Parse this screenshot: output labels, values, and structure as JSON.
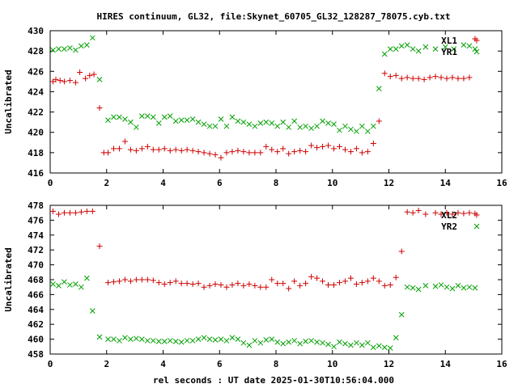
{
  "title": "HIRES continuum, GL32, file:Skynet_60705_GL32_128287_78075.cyb.txt",
  "xlabel": "rel seconds : UT date 2025-01-30T10:56:04.000",
  "colors": {
    "red": "#d00000",
    "green": "#00a000",
    "axis": "#000000"
  },
  "chart_data": [
    {
      "type": "scatter",
      "title": "",
      "ylabel": "Uncalibrated",
      "xlim": [
        0,
        16
      ],
      "ylim": [
        416,
        430
      ],
      "xticks": [
        0,
        2,
        4,
        6,
        8,
        10,
        12,
        14,
        16
      ],
      "yticks": [
        416,
        418,
        420,
        422,
        424,
        426,
        428,
        430
      ],
      "legend_position": "top-right",
      "series": [
        {
          "name": "XL1",
          "marker": "+",
          "color": "#d00000",
          "x": [
            0.1,
            0.2,
            0.35,
            0.5,
            0.7,
            0.9,
            1.05,
            1.25,
            1.4,
            1.55,
            1.75,
            1.9,
            2.05,
            2.25,
            2.45,
            2.65,
            2.85,
            3.05,
            3.25,
            3.45,
            3.65,
            3.85,
            4.05,
            4.25,
            4.45,
            4.65,
            4.85,
            5.05,
            5.25,
            5.45,
            5.65,
            5.85,
            6.05,
            6.25,
            6.45,
            6.65,
            6.85,
            7.05,
            7.25,
            7.45,
            7.65,
            7.85,
            8.05,
            8.25,
            8.45,
            8.65,
            8.85,
            9.05,
            9.25,
            9.45,
            9.65,
            9.85,
            10.05,
            10.25,
            10.45,
            10.65,
            10.85,
            11.05,
            11.25,
            11.45,
            11.65,
            11.85,
            12.05,
            12.25,
            12.45,
            12.65,
            12.85,
            13.05,
            13.25,
            13.45,
            13.65,
            13.85,
            14.05,
            14.25,
            14.45,
            14.65,
            14.85,
            15.05
          ],
          "y": [
            425.0,
            425.2,
            425.1,
            425.0,
            425.1,
            424.9,
            425.9,
            425.3,
            425.6,
            425.7,
            422.4,
            418.0,
            418.0,
            418.4,
            418.4,
            419.1,
            418.3,
            418.2,
            418.4,
            418.6,
            418.3,
            418.3,
            418.4,
            418.2,
            418.3,
            418.2,
            418.3,
            418.2,
            418.1,
            418.0,
            417.9,
            417.8,
            417.5,
            418.0,
            418.1,
            418.2,
            418.1,
            418.0,
            418.0,
            418.0,
            418.6,
            418.3,
            418.1,
            418.4,
            417.9,
            418.1,
            418.2,
            418.1,
            418.7,
            418.5,
            418.6,
            418.7,
            418.4,
            418.6,
            418.3,
            418.1,
            418.4,
            418.0,
            418.1,
            418.9,
            421.1,
            425.8,
            425.5,
            425.6,
            425.3,
            425.4,
            425.3,
            425.3,
            425.2,
            425.4,
            425.5,
            425.4,
            425.3,
            425.4,
            425.3,
            425.3,
            425.4,
            429.2
          ]
        },
        {
          "name": "YR1",
          "marker": "x",
          "color": "#00a000",
          "x": [
            0.1,
            0.3,
            0.5,
            0.7,
            0.9,
            1.1,
            1.3,
            1.5,
            1.75,
            2.05,
            2.25,
            2.45,
            2.65,
            2.85,
            3.05,
            3.25,
            3.45,
            3.65,
            3.85,
            4.05,
            4.25,
            4.45,
            4.65,
            4.85,
            5.05,
            5.25,
            5.45,
            5.65,
            5.85,
            6.05,
            6.25,
            6.45,
            6.65,
            6.85,
            7.05,
            7.25,
            7.45,
            7.65,
            7.85,
            8.05,
            8.25,
            8.45,
            8.65,
            8.85,
            9.05,
            9.25,
            9.45,
            9.65,
            9.85,
            10.05,
            10.25,
            10.45,
            10.65,
            10.85,
            11.05,
            11.25,
            11.45,
            11.65,
            11.85,
            12.05,
            12.25,
            12.45,
            12.65,
            12.85,
            13.05,
            13.3,
            13.65,
            14.0,
            14.3,
            14.65,
            14.85,
            15.05
          ],
          "y": [
            428.1,
            428.2,
            428.2,
            428.3,
            428.1,
            428.5,
            428.6,
            429.3,
            425.2,
            421.2,
            421.5,
            421.5,
            421.3,
            421.0,
            420.5,
            421.6,
            421.6,
            421.5,
            420.9,
            421.5,
            421.6,
            421.1,
            421.2,
            421.2,
            421.3,
            421.0,
            420.8,
            420.6,
            420.6,
            421.3,
            420.6,
            421.5,
            421.1,
            421.0,
            420.8,
            420.6,
            420.9,
            421.0,
            420.9,
            420.6,
            421.0,
            420.5,
            421.1,
            420.5,
            420.6,
            420.4,
            420.6,
            421.1,
            420.9,
            420.8,
            420.2,
            420.6,
            420.3,
            420.1,
            420.6,
            420.1,
            420.6,
            424.3,
            427.7,
            428.2,
            428.2,
            428.5,
            428.6,
            428.2,
            428.0,
            428.4,
            428.2,
            428.4,
            428.2,
            428.6,
            428.5,
            428.2
          ]
        }
      ]
    },
    {
      "type": "scatter",
      "title": "",
      "ylabel": "Uncalibrated",
      "xlim": [
        0,
        16
      ],
      "ylim": [
        458,
        478
      ],
      "xticks": [
        0,
        2,
        4,
        6,
        8,
        10,
        12,
        14,
        16
      ],
      "yticks": [
        458,
        460,
        462,
        464,
        466,
        468,
        470,
        472,
        474,
        476,
        478
      ],
      "legend_position": "top-right",
      "series": [
        {
          "name": "XL2",
          "marker": "+",
          "color": "#d00000",
          "x": [
            0.1,
            0.3,
            0.5,
            0.7,
            0.9,
            1.1,
            1.3,
            1.5,
            1.75,
            2.05,
            2.25,
            2.45,
            2.65,
            2.85,
            3.05,
            3.25,
            3.45,
            3.65,
            3.85,
            4.05,
            4.25,
            4.45,
            4.65,
            4.85,
            5.05,
            5.25,
            5.45,
            5.65,
            5.85,
            6.05,
            6.25,
            6.45,
            6.65,
            6.85,
            7.05,
            7.25,
            7.45,
            7.65,
            7.85,
            8.05,
            8.25,
            8.45,
            8.65,
            8.85,
            9.05,
            9.25,
            9.45,
            9.65,
            9.85,
            10.05,
            10.25,
            10.45,
            10.65,
            10.85,
            11.05,
            11.25,
            11.45,
            11.65,
            11.85,
            12.05,
            12.25,
            12.45,
            12.65,
            12.85,
            13.05,
            13.3,
            13.65,
            13.85,
            14.05,
            14.25,
            14.45,
            14.65,
            14.85,
            15.05
          ],
          "y": [
            477.2,
            476.8,
            477.0,
            477.0,
            477.0,
            477.1,
            477.2,
            477.2,
            472.5,
            467.6,
            467.7,
            467.8,
            468.0,
            467.8,
            468.0,
            468.0,
            468.0,
            467.9,
            467.6,
            467.4,
            467.6,
            467.8,
            467.5,
            467.5,
            467.4,
            467.5,
            467.0,
            467.2,
            467.4,
            467.3,
            467.0,
            467.3,
            467.5,
            467.2,
            467.4,
            467.2,
            467.0,
            467.0,
            468.0,
            467.5,
            467.5,
            466.8,
            467.8,
            467.2,
            467.5,
            468.4,
            468.2,
            467.8,
            467.3,
            467.3,
            467.6,
            467.8,
            468.2,
            467.4,
            467.6,
            467.8,
            468.2,
            467.8,
            467.2,
            467.3,
            468.3,
            471.8,
            477.1,
            477.0,
            477.3,
            476.8,
            477.0,
            476.8,
            477.0,
            476.8,
            477.0,
            476.9,
            477.0,
            476.9
          ]
        },
        {
          "name": "YR2",
          "marker": "x",
          "color": "#00a000",
          "x": [
            0.1,
            0.3,
            0.5,
            0.7,
            0.9,
            1.1,
            1.3,
            1.5,
            1.75,
            2.05,
            2.25,
            2.45,
            2.65,
            2.85,
            3.05,
            3.25,
            3.45,
            3.65,
            3.85,
            4.05,
            4.25,
            4.45,
            4.65,
            4.85,
            5.05,
            5.25,
            5.45,
            5.65,
            5.85,
            6.05,
            6.25,
            6.45,
            6.65,
            6.85,
            7.05,
            7.25,
            7.45,
            7.65,
            7.85,
            8.05,
            8.25,
            8.45,
            8.65,
            8.85,
            9.05,
            9.25,
            9.45,
            9.65,
            9.85,
            10.05,
            10.25,
            10.45,
            10.65,
            10.85,
            11.05,
            11.25,
            11.45,
            11.65,
            11.85,
            12.05,
            12.25,
            12.45,
            12.65,
            12.85,
            13.05,
            13.3,
            13.65,
            13.85,
            14.05,
            14.25,
            14.45,
            14.65,
            14.85,
            15.05
          ],
          "y": [
            467.4,
            467.2,
            467.7,
            467.3,
            467.4,
            467.0,
            468.2,
            463.8,
            460.3,
            460.0,
            460.0,
            459.8,
            460.2,
            460.0,
            460.1,
            460.0,
            459.8,
            459.8,
            459.7,
            459.7,
            459.8,
            459.7,
            459.6,
            459.8,
            459.8,
            460.0,
            460.2,
            460.0,
            459.9,
            460.0,
            459.8,
            460.2,
            460.0,
            459.5,
            459.2,
            459.8,
            459.5,
            459.9,
            460.0,
            459.6,
            459.4,
            459.6,
            459.8,
            459.4,
            459.7,
            459.8,
            459.6,
            459.5,
            459.3,
            459.0,
            459.6,
            459.4,
            459.2,
            459.5,
            459.2,
            459.5,
            458.9,
            459.1,
            458.9,
            458.8,
            460.2,
            463.3,
            467.0,
            466.9,
            466.7,
            467.2,
            467.1,
            467.3,
            467.0,
            466.8,
            467.2,
            466.9,
            467.0,
            466.9
          ]
        }
      ]
    }
  ]
}
